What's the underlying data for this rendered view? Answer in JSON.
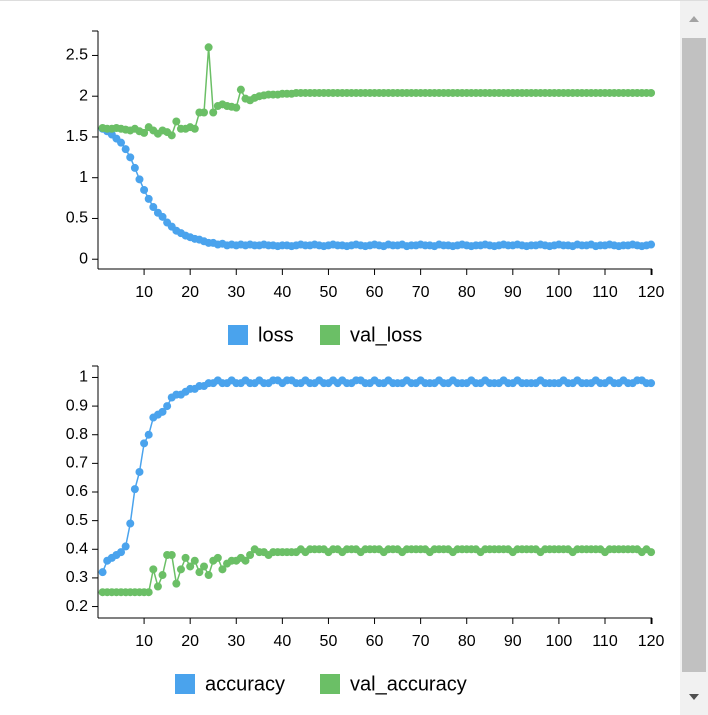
{
  "chart_data": [
    {
      "type": "line",
      "x": [
        1,
        2,
        3,
        4,
        5,
        6,
        7,
        8,
        9,
        10,
        11,
        12,
        13,
        14,
        15,
        16,
        17,
        18,
        19,
        20,
        21,
        22,
        23,
        24,
        25,
        26,
        27,
        28,
        29,
        30,
        31,
        32,
        33,
        34,
        35,
        36,
        37,
        38,
        39,
        40,
        41,
        42,
        43,
        44,
        45,
        46,
        47,
        48,
        49,
        50,
        51,
        52,
        53,
        54,
        55,
        56,
        57,
        58,
        59,
        60,
        61,
        62,
        63,
        64,
        65,
        66,
        67,
        68,
        69,
        70,
        71,
        72,
        73,
        74,
        75,
        76,
        77,
        78,
        79,
        80,
        81,
        82,
        83,
        84,
        85,
        86,
        87,
        88,
        89,
        90,
        91,
        92,
        93,
        94,
        95,
        96,
        97,
        98,
        99,
        100,
        101,
        102,
        103,
        104,
        105,
        106,
        107,
        108,
        109,
        110,
        111,
        112,
        113,
        114,
        115,
        116,
        117,
        118,
        119,
        120
      ],
      "series": [
        {
          "name": "loss",
          "color": "#4aa3ed",
          "values": [
            1.6,
            1.57,
            1.53,
            1.48,
            1.43,
            1.35,
            1.25,
            1.12,
            0.98,
            0.85,
            0.74,
            0.64,
            0.57,
            0.52,
            0.45,
            0.4,
            0.35,
            0.32,
            0.29,
            0.27,
            0.25,
            0.24,
            0.22,
            0.2,
            0.2,
            0.18,
            0.19,
            0.17,
            0.18,
            0.17,
            0.18,
            0.17,
            0.18,
            0.17,
            0.17,
            0.18,
            0.17,
            0.17,
            0.16,
            0.17,
            0.17,
            0.16,
            0.17,
            0.18,
            0.17,
            0.17,
            0.18,
            0.17,
            0.16,
            0.17,
            0.18,
            0.17,
            0.17,
            0.16,
            0.17,
            0.18,
            0.17,
            0.16,
            0.17,
            0.18,
            0.17,
            0.16,
            0.18,
            0.17,
            0.17,
            0.18,
            0.16,
            0.17,
            0.17,
            0.18,
            0.17,
            0.17,
            0.16,
            0.18,
            0.17,
            0.17,
            0.16,
            0.17,
            0.18,
            0.17,
            0.16,
            0.17,
            0.17,
            0.18,
            0.17,
            0.16,
            0.17,
            0.18,
            0.17,
            0.17,
            0.18,
            0.17,
            0.16,
            0.17,
            0.17,
            0.18,
            0.17,
            0.16,
            0.17,
            0.18,
            0.17,
            0.17,
            0.16,
            0.18,
            0.17,
            0.17,
            0.18,
            0.16,
            0.17,
            0.17,
            0.18,
            0.17,
            0.16,
            0.17,
            0.17,
            0.18,
            0.17,
            0.16,
            0.17,
            0.18
          ]
        },
        {
          "name": "val_loss",
          "color": "#6bbf66",
          "values": [
            1.61,
            1.6,
            1.6,
            1.61,
            1.6,
            1.59,
            1.58,
            1.6,
            1.57,
            1.55,
            1.62,
            1.58,
            1.54,
            1.58,
            1.56,
            1.52,
            1.69,
            1.6,
            1.6,
            1.62,
            1.6,
            1.8,
            1.8,
            2.6,
            1.8,
            1.88,
            1.9,
            1.88,
            1.87,
            1.86,
            2.08,
            1.97,
            1.95,
            1.98,
            2,
            2.01,
            2.02,
            2.02,
            2.02,
            2.03,
            2.03,
            2.03,
            2.04,
            2.04,
            2.04,
            2.04,
            2.04,
            2.04,
            2.04,
            2.04,
            2.04,
            2.04,
            2.04,
            2.04,
            2.04,
            2.04,
            2.04,
            2.04,
            2.04,
            2.04,
            2.04,
            2.04,
            2.04,
            2.04,
            2.04,
            2.04,
            2.04,
            2.04,
            2.04,
            2.04,
            2.04,
            2.04,
            2.04,
            2.04,
            2.04,
            2.04,
            2.04,
            2.04,
            2.04,
            2.04,
            2.04,
            2.04,
            2.04,
            2.04,
            2.04,
            2.04,
            2.04,
            2.04,
            2.04,
            2.04,
            2.04,
            2.04,
            2.04,
            2.04,
            2.04,
            2.04,
            2.04,
            2.04,
            2.04,
            2.04,
            2.04,
            2.04,
            2.04,
            2.04,
            2.04,
            2.04,
            2.04,
            2.04,
            2.04,
            2.04,
            2.04,
            2.04,
            2.04,
            2.04,
            2.04,
            2.04,
            2.04,
            2.04,
            2.04,
            2.04
          ]
        }
      ],
      "xlim": [
        0,
        120.2
      ],
      "xticks": [
        10,
        20,
        30,
        40,
        50,
        60,
        70,
        80,
        90,
        100,
        110,
        120
      ],
      "ylim": [
        -0.12,
        2.8
      ],
      "yticks": [
        0,
        0.5,
        1,
        1.5,
        2,
        2.5
      ]
    },
    {
      "type": "line",
      "x": [
        1,
        2,
        3,
        4,
        5,
        6,
        7,
        8,
        9,
        10,
        11,
        12,
        13,
        14,
        15,
        16,
        17,
        18,
        19,
        20,
        21,
        22,
        23,
        24,
        25,
        26,
        27,
        28,
        29,
        30,
        31,
        32,
        33,
        34,
        35,
        36,
        37,
        38,
        39,
        40,
        41,
        42,
        43,
        44,
        45,
        46,
        47,
        48,
        49,
        50,
        51,
        52,
        53,
        54,
        55,
        56,
        57,
        58,
        59,
        60,
        61,
        62,
        63,
        64,
        65,
        66,
        67,
        68,
        69,
        70,
        71,
        72,
        73,
        74,
        75,
        76,
        77,
        78,
        79,
        80,
        81,
        82,
        83,
        84,
        85,
        86,
        87,
        88,
        89,
        90,
        91,
        92,
        93,
        94,
        95,
        96,
        97,
        98,
        99,
        100,
        101,
        102,
        103,
        104,
        105,
        106,
        107,
        108,
        109,
        110,
        111,
        112,
        113,
        114,
        115,
        116,
        117,
        118,
        119,
        120
      ],
      "series": [
        {
          "name": "accuracy",
          "color": "#4aa3ed",
          "values": [
            0.32,
            0.36,
            0.37,
            0.38,
            0.39,
            0.41,
            0.49,
            0.61,
            0.67,
            0.77,
            0.8,
            0.86,
            0.87,
            0.88,
            0.9,
            0.93,
            0.94,
            0.94,
            0.95,
            0.96,
            0.96,
            0.97,
            0.97,
            0.98,
            0.98,
            0.99,
            0.98,
            0.98,
            0.99,
            0.98,
            0.98,
            0.99,
            0.98,
            0.98,
            0.99,
            0.98,
            0.98,
            0.99,
            0.99,
            0.98,
            0.99,
            0.99,
            0.98,
            0.98,
            0.99,
            0.98,
            0.98,
            0.99,
            0.98,
            0.98,
            0.99,
            0.98,
            0.99,
            0.98,
            0.98,
            0.99,
            0.99,
            0.98,
            0.98,
            0.99,
            0.98,
            0.98,
            0.99,
            0.98,
            0.98,
            0.98,
            0.99,
            0.98,
            0.98,
            0.99,
            0.98,
            0.98,
            0.98,
            0.99,
            0.98,
            0.98,
            0.99,
            0.98,
            0.98,
            0.98,
            0.99,
            0.98,
            0.98,
            0.99,
            0.98,
            0.98,
            0.98,
            0.99,
            0.98,
            0.98,
            0.99,
            0.98,
            0.98,
            0.98,
            0.98,
            0.99,
            0.98,
            0.98,
            0.98,
            0.98,
            0.99,
            0.98,
            0.98,
            0.99,
            0.98,
            0.98,
            0.98,
            0.99,
            0.98,
            0.98,
            0.99,
            0.98,
            0.98,
            0.99,
            0.98,
            0.98,
            0.99,
            0.99,
            0.98,
            0.98
          ]
        },
        {
          "name": "val_accuracy",
          "color": "#6bbf66",
          "values": [
            0.25,
            0.25,
            0.25,
            0.25,
            0.25,
            0.25,
            0.25,
            0.25,
            0.25,
            0.25,
            0.25,
            0.33,
            0.27,
            0.31,
            0.38,
            0.38,
            0.28,
            0.33,
            0.37,
            0.34,
            0.36,
            0.32,
            0.34,
            0.31,
            0.36,
            0.37,
            0.33,
            0.35,
            0.36,
            0.36,
            0.37,
            0.36,
            0.38,
            0.4,
            0.39,
            0.39,
            0.38,
            0.39,
            0.39,
            0.39,
            0.39,
            0.39,
            0.39,
            0.4,
            0.39,
            0.4,
            0.4,
            0.4,
            0.4,
            0.39,
            0.4,
            0.4,
            0.39,
            0.4,
            0.4,
            0.4,
            0.39,
            0.4,
            0.4,
            0.4,
            0.4,
            0.39,
            0.4,
            0.4,
            0.4,
            0.39,
            0.4,
            0.4,
            0.4,
            0.4,
            0.4,
            0.39,
            0.4,
            0.4,
            0.4,
            0.4,
            0.39,
            0.4,
            0.4,
            0.4,
            0.4,
            0.4,
            0.39,
            0.4,
            0.4,
            0.4,
            0.4,
            0.4,
            0.4,
            0.39,
            0.4,
            0.4,
            0.4,
            0.4,
            0.4,
            0.39,
            0.4,
            0.4,
            0.4,
            0.4,
            0.4,
            0.4,
            0.39,
            0.4,
            0.4,
            0.4,
            0.4,
            0.4,
            0.4,
            0.39,
            0.4,
            0.4,
            0.4,
            0.4,
            0.4,
            0.4,
            0.4,
            0.39,
            0.4,
            0.39
          ]
        }
      ],
      "xlim": [
        0,
        120.2
      ],
      "xticks": [
        10,
        20,
        30,
        40,
        50,
        60,
        70,
        80,
        90,
        100,
        110,
        120
      ],
      "ylim": [
        0.16,
        1.04
      ],
      "yticks": [
        0.2,
        0.3,
        0.4,
        0.5,
        0.6,
        0.7,
        0.8,
        0.9,
        1
      ]
    }
  ]
}
